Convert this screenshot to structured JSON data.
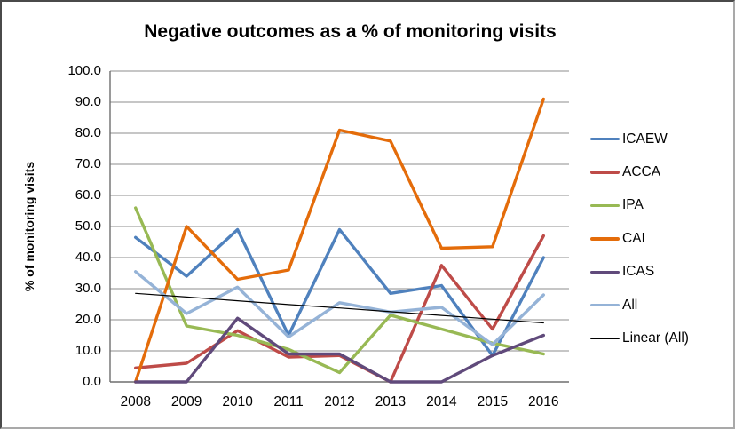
{
  "chart_data": {
    "type": "line",
    "title": "Negative outcomes as a % of monitoring visits",
    "ylabel": "% of monitoring visits",
    "xlabel": "",
    "categories": [
      "2008",
      "2009",
      "2010",
      "2011",
      "2012",
      "2013",
      "2014",
      "2015",
      "2016"
    ],
    "ylim": [
      0,
      100
    ],
    "ytick_step": 10,
    "ytick_labels": [
      "0.0",
      "10.0",
      "20.0",
      "30.0",
      "40.0",
      "50.0",
      "60.0",
      "70.0",
      "80.0",
      "90.0",
      "100.0"
    ],
    "grid": true,
    "legend_position": "right",
    "series": [
      {
        "name": "ICAEW",
        "color": "#4F81BD",
        "line_width": 3.4,
        "values": [
          46.5,
          34,
          49,
          15,
          49,
          28.5,
          31,
          8.5,
          40
        ]
      },
      {
        "name": "ACCA",
        "color": "#BE4B48",
        "line_width": 3.4,
        "values": [
          4.5,
          6,
          16.5,
          8,
          8.5,
          0,
          37.5,
          17,
          47
        ]
      },
      {
        "name": "IPA",
        "color": "#98B954",
        "line_width": 3.4,
        "values": [
          56,
          18,
          15,
          10.5,
          3,
          21.5,
          17,
          12.5,
          9
        ]
      },
      {
        "name": "CAI",
        "color": "#E46C0A",
        "line_width": 3.4,
        "values": [
          0,
          50,
          33,
          36,
          81,
          77.5,
          43,
          43.5,
          91
        ]
      },
      {
        "name": "ICAS",
        "color": "#604A7B",
        "line_width": 3.4,
        "values": [
          0,
          0,
          20.5,
          9,
          9,
          0,
          0,
          8.5,
          15
        ]
      },
      {
        "name": "All",
        "color": "#95B3D7",
        "line_width": 3.4,
        "values": [
          35.5,
          22,
          30.5,
          14.5,
          25.5,
          22.5,
          24,
          12,
          28
        ]
      },
      {
        "name": "Linear (All)",
        "color": "#000000",
        "line_width": 1.2,
        "values": [
          28.5,
          27.3,
          26.1,
          24.9,
          23.8,
          22.6,
          21.4,
          20.2,
          19
        ]
      }
    ]
  }
}
